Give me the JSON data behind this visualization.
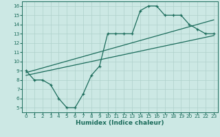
{
  "xlabel": "Humidex (Indice chaleur)",
  "bg_color": "#cce8e4",
  "line_color": "#1a6b5a",
  "grid_color": "#aed0cb",
  "xlim": [
    -0.5,
    23.5
  ],
  "ylim": [
    4.5,
    16.5
  ],
  "xticks": [
    0,
    1,
    2,
    3,
    4,
    5,
    6,
    7,
    8,
    9,
    10,
    11,
    12,
    13,
    14,
    15,
    16,
    17,
    18,
    19,
    20,
    21,
    22,
    23
  ],
  "yticks": [
    5,
    6,
    7,
    8,
    9,
    10,
    11,
    12,
    13,
    14,
    15,
    16
  ],
  "line1_x": [
    0,
    1,
    2,
    3,
    4,
    5,
    6,
    7,
    8,
    9,
    10,
    11,
    12,
    13,
    14,
    15,
    16,
    17,
    18,
    19,
    20,
    21,
    22,
    23
  ],
  "line1_y": [
    9,
    8,
    8,
    7.5,
    6,
    5,
    5,
    6.5,
    8.5,
    9.5,
    13,
    13,
    13,
    13,
    15.5,
    16,
    16,
    15,
    15,
    15,
    14,
    13.5,
    13,
    13
  ],
  "line2_x": [
    0,
    23
  ],
  "line2_y": [
    8.8,
    14.5
  ],
  "line3_x": [
    0,
    23
  ],
  "line3_y": [
    8.5,
    12.8
  ],
  "tick_fontsize": 5.2,
  "label_fontsize": 6.5
}
